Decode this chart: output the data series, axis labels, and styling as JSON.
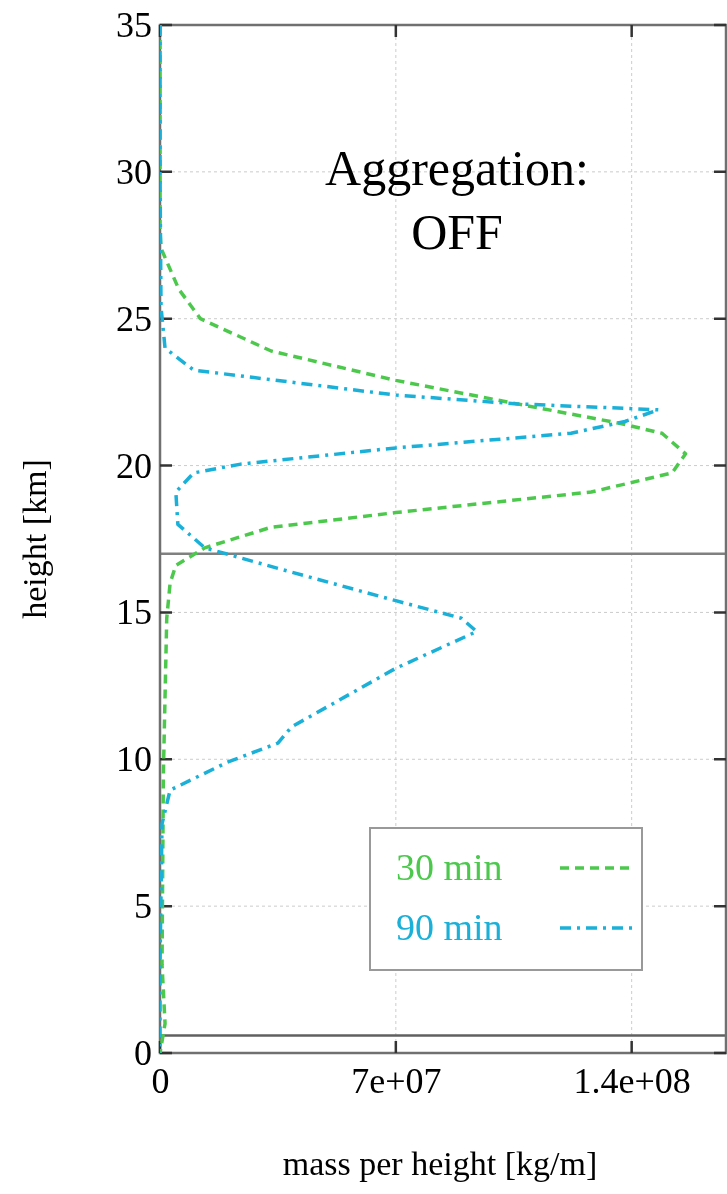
{
  "chart_data": {
    "type": "line",
    "title": "Aggregation:\nOFF",
    "xlabel": "mass per height [kg/m]",
    "ylabel": "height [km]",
    "xlim": [
      0,
      168000000
    ],
    "ylim": [
      0,
      35
    ],
    "xticks": [
      0,
      {
        "value": 70000000,
        "label": "7e+07"
      },
      {
        "value": 140000000,
        "label": "1.4e+08"
      }
    ],
    "yticks": [
      0,
      5,
      10,
      15,
      20,
      25,
      30,
      35
    ],
    "grid": true,
    "legend": "bottom right",
    "marker": "none",
    "ref_lines": [
      {
        "axis": "y",
        "value": 17,
        "label": null,
        "color": "#808080"
      },
      {
        "axis": "y",
        "value": 0.6,
        "label": null,
        "color": "#606060"
      }
    ],
    "series": [
      {
        "name": "30 min",
        "color": "#4cc94c",
        "line_style": "dashed",
        "x": [
          0,
          0,
          300000,
          5600000,
          12000000,
          33000000,
          70000000,
          106000000,
          136000000,
          149000000,
          156000000,
          152000000,
          128000000,
          70000000,
          33000000,
          13300000,
          4700000,
          3000000,
          2000000,
          1000000,
          600000,
          1500000,
          0
        ],
        "values": [
          35,
          28,
          27.4,
          26,
          25,
          23.9,
          22.9,
          22.1,
          21.45,
          21.1,
          20.4,
          19.75,
          19.1,
          18.4,
          17.9,
          17.2,
          16.6,
          16,
          14.8,
          9.5,
          3,
          1,
          0
        ]
      },
      {
        "name": "90 min",
        "color": "#1ab0d8",
        "line_style": "dashdot",
        "x": [
          0,
          0,
          300000,
          1500000,
          10000000,
          70000000,
          106000000,
          148000000,
          138000000,
          122000000,
          70000000,
          24000000,
          10000000,
          4700000,
          5300000,
          13300000,
          35000000,
          70000000,
          89500000,
          94000000,
          70000000,
          39000000,
          35000000,
          20000000,
          3000000,
          600000,
          0,
          0
        ],
        "values": [
          35,
          30,
          25.4,
          24,
          23.25,
          22.4,
          22.1,
          21.9,
          21.5,
          21.1,
          20.6,
          20.05,
          19.75,
          19.1,
          18,
          17.2,
          16.5,
          15.4,
          14.8,
          14.35,
          13.1,
          11.1,
          10.55,
          9.9,
          8.95,
          7.8,
          3,
          0
        ]
      }
    ]
  }
}
